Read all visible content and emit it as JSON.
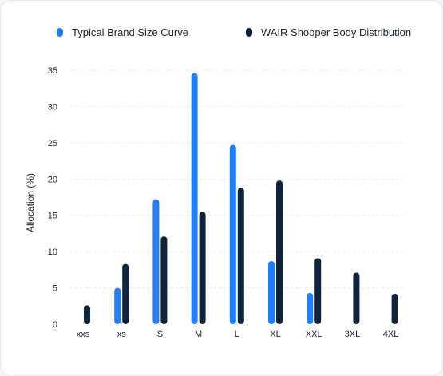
{
  "colors": {
    "series_a": "#1f7fff",
    "series_b": "#0e2340",
    "grid": "#e9ebef",
    "text": "#1a2233"
  },
  "chart_data": {
    "type": "bar",
    "title": "",
    "xlabel": "",
    "ylabel": "Allocation (%)",
    "ylim": [
      0,
      35
    ],
    "yticks": [
      0,
      5,
      10,
      15,
      20,
      25,
      30,
      35
    ],
    "grid": true,
    "legend_position": "top",
    "categories": [
      "xxs",
      "xs",
      "S",
      "M",
      "L",
      "XL",
      "XXL",
      "3XL",
      "4XL"
    ],
    "series": [
      {
        "name": "Typical Brand Size Curve",
        "color": "#1f7fff",
        "values": [
          0,
          5,
          17.2,
          34.6,
          24.7,
          8.7,
          4.3,
          0,
          0
        ]
      },
      {
        "name": "WAIR Shopper Body Distribution",
        "color": "#0e2340",
        "values": [
          2.6,
          8.3,
          12.1,
          15.5,
          18.8,
          19.8,
          9.1,
          7.1,
          4.2
        ]
      }
    ]
  }
}
